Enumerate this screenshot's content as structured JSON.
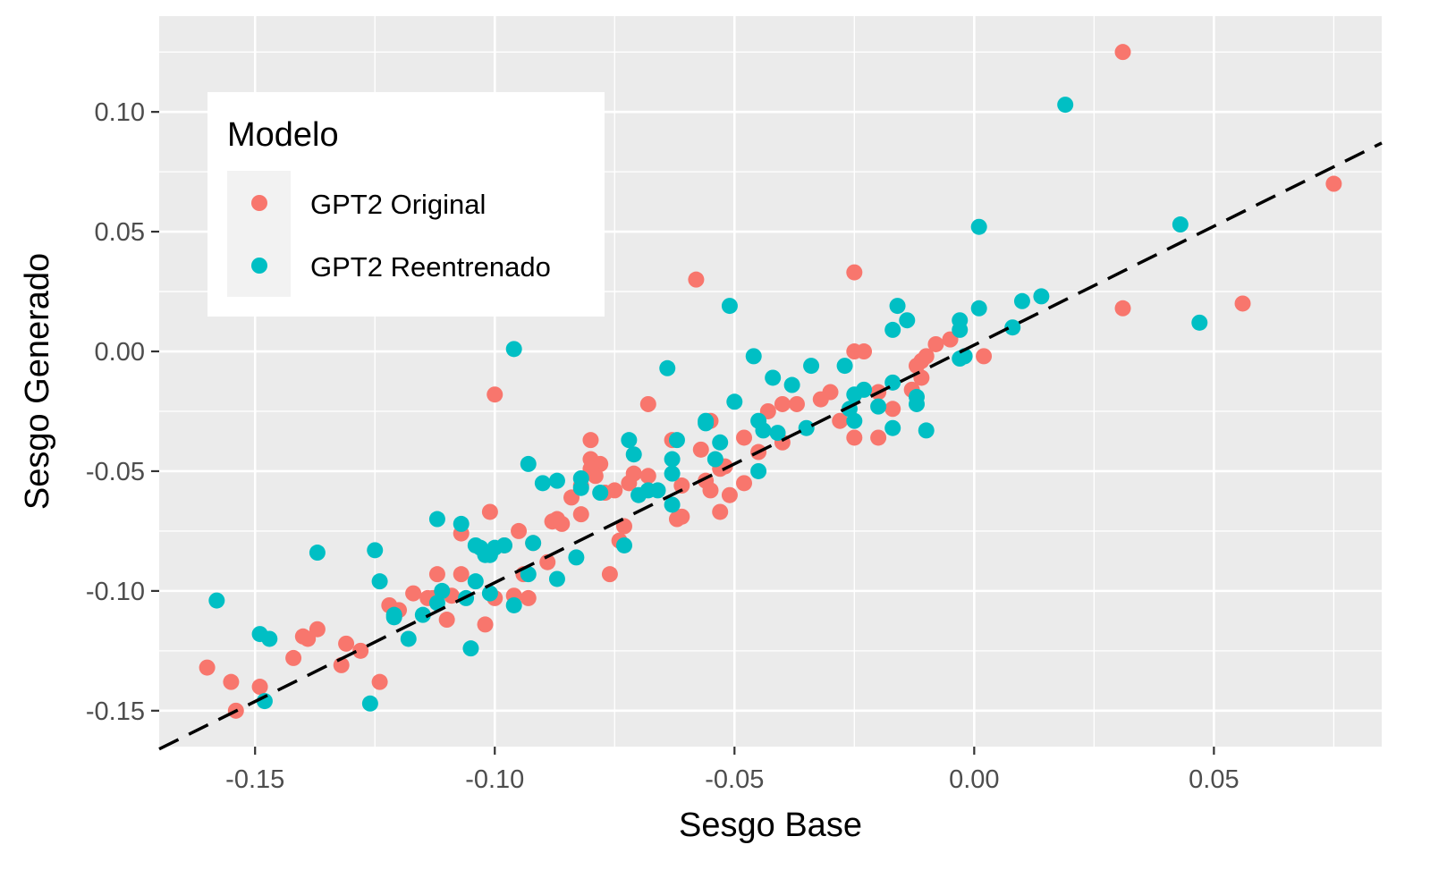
{
  "chart_data": {
    "type": "scatter",
    "xlabel": "Sesgo Base",
    "ylabel": "Sesgo Generado",
    "xlim": [
      -0.17,
      0.085
    ],
    "ylim": [
      -0.165,
      0.14
    ],
    "x_ticks": [
      -0.15,
      -0.1,
      -0.05,
      0.0,
      0.05
    ],
    "x_tick_labels": [
      "-0.15",
      "-0.10",
      "-0.05",
      "0.00",
      "0.05"
    ],
    "y_ticks": [
      -0.15,
      -0.1,
      -0.05,
      0.0,
      0.05,
      0.1
    ],
    "y_tick_labels": [
      "-0.15",
      "-0.10",
      "-0.05",
      "0.00",
      "0.05",
      "0.10"
    ],
    "grid": true,
    "background": "#ebebeb",
    "reference_line": {
      "style": "dashed",
      "color": "#000000",
      "x": [
        -0.17,
        0.085
      ],
      "y": [
        -0.166,
        0.087
      ]
    },
    "legend": {
      "title": "Modelo",
      "position": "top-left",
      "entries": [
        "GPT2 Original",
        "GPT2 Reentrenado"
      ]
    },
    "series": [
      {
        "name": "GPT2 Original",
        "color": "#f8766d",
        "points": [
          [
            0.031,
            0.125
          ],
          [
            0.075,
            0.07
          ],
          [
            0.056,
            0.02
          ],
          [
            0.031,
            0.018
          ],
          [
            -0.025,
            0.033
          ],
          [
            -0.058,
            0.03
          ],
          [
            0.002,
            -0.002
          ],
          [
            -0.025,
            0.0
          ],
          [
            -0.023,
            0.0
          ],
          [
            -0.005,
            0.005
          ],
          [
            -0.008,
            0.003
          ],
          [
            -0.01,
            -0.002
          ],
          [
            -0.011,
            -0.004
          ],
          [
            -0.012,
            -0.006
          ],
          [
            -0.011,
            -0.011
          ],
          [
            -0.013,
            -0.016
          ],
          [
            -0.02,
            -0.017
          ],
          [
            -0.017,
            -0.024
          ],
          [
            -0.03,
            -0.017
          ],
          [
            -0.032,
            -0.02
          ],
          [
            -0.028,
            -0.029
          ],
          [
            -0.025,
            -0.036
          ],
          [
            -0.02,
            -0.036
          ],
          [
            -0.037,
            -0.022
          ],
          [
            -0.04,
            -0.022
          ],
          [
            -0.043,
            -0.025
          ],
          [
            -0.04,
            -0.038
          ],
          [
            -0.048,
            -0.036
          ],
          [
            -0.045,
            -0.042
          ],
          [
            -0.048,
            -0.055
          ],
          [
            -0.051,
            -0.06
          ],
          [
            -0.053,
            -0.067
          ],
          [
            -0.053,
            -0.049
          ],
          [
            -0.055,
            -0.029
          ],
          [
            -0.057,
            -0.041
          ],
          [
            -0.056,
            -0.054
          ],
          [
            -0.055,
            -0.058
          ],
          [
            -0.061,
            -0.056
          ],
          [
            -0.063,
            -0.037
          ],
          [
            -0.068,
            -0.022
          ],
          [
            -0.068,
            -0.052
          ],
          [
            -0.071,
            -0.051
          ],
          [
            -0.072,
            -0.055
          ],
          [
            -0.073,
            -0.073
          ],
          [
            -0.074,
            -0.079
          ],
          [
            -0.076,
            -0.093
          ],
          [
            -0.075,
            -0.058
          ],
          [
            -0.077,
            -0.059
          ],
          [
            -0.078,
            -0.047
          ],
          [
            -0.079,
            -0.052
          ],
          [
            -0.08,
            -0.037
          ],
          [
            -0.08,
            -0.045
          ],
          [
            -0.08,
            -0.049
          ],
          [
            -0.082,
            -0.056
          ],
          [
            -0.082,
            -0.068
          ],
          [
            -0.084,
            -0.061
          ],
          [
            -0.086,
            -0.072
          ],
          [
            -0.088,
            -0.071
          ],
          [
            -0.089,
            -0.088
          ],
          [
            -0.092,
            -0.08
          ],
          [
            -0.094,
            -0.093
          ],
          [
            -0.095,
            -0.075
          ],
          [
            -0.093,
            -0.103
          ],
          [
            -0.096,
            -0.102
          ],
          [
            -0.098,
            -0.081
          ],
          [
            -0.101,
            -0.067
          ],
          [
            -0.1,
            -0.018
          ],
          [
            -0.1,
            -0.103
          ],
          [
            -0.102,
            -0.114
          ],
          [
            -0.107,
            -0.093
          ],
          [
            -0.107,
            -0.076
          ],
          [
            -0.109,
            -0.102
          ],
          [
            -0.11,
            -0.112
          ],
          [
            -0.112,
            -0.093
          ],
          [
            -0.113,
            -0.103
          ],
          [
            -0.114,
            -0.103
          ],
          [
            -0.117,
            -0.101
          ],
          [
            -0.12,
            -0.108
          ],
          [
            -0.122,
            -0.106
          ],
          [
            -0.124,
            -0.138
          ],
          [
            -0.128,
            -0.125
          ],
          [
            -0.131,
            -0.122
          ],
          [
            -0.132,
            -0.131
          ],
          [
            -0.137,
            -0.116
          ],
          [
            -0.139,
            -0.12
          ],
          [
            -0.14,
            -0.119
          ],
          [
            -0.142,
            -0.128
          ],
          [
            -0.149,
            -0.14
          ],
          [
            -0.154,
            -0.15
          ],
          [
            -0.155,
            -0.138
          ],
          [
            -0.16,
            -0.132
          ],
          [
            -0.062,
            -0.07
          ],
          [
            -0.061,
            -0.069
          ],
          [
            -0.052,
            -0.048
          ],
          [
            -0.087,
            -0.07
          ]
        ]
      },
      {
        "name": "GPT2 Reentrenado",
        "color": "#00bfc4",
        "points": [
          [
            0.019,
            0.103
          ],
          [
            0.043,
            0.053
          ],
          [
            0.047,
            0.012
          ],
          [
            0.001,
            0.052
          ],
          [
            0.014,
            0.023
          ],
          [
            0.01,
            0.021
          ],
          [
            0.008,
            0.01
          ],
          [
            0.001,
            0.018
          ],
          [
            -0.003,
            0.013
          ],
          [
            -0.003,
            0.009
          ],
          [
            -0.002,
            -0.002
          ],
          [
            -0.003,
            -0.003
          ],
          [
            -0.016,
            0.019
          ],
          [
            -0.014,
            0.013
          ],
          [
            -0.017,
            0.009
          ],
          [
            -0.012,
            -0.022
          ],
          [
            -0.017,
            -0.013
          ],
          [
            -0.01,
            -0.033
          ],
          [
            -0.017,
            -0.032
          ],
          [
            -0.023,
            -0.016
          ],
          [
            -0.02,
            -0.023
          ],
          [
            -0.025,
            -0.018
          ],
          [
            -0.025,
            -0.029
          ],
          [
            -0.027,
            -0.006
          ],
          [
            -0.034,
            -0.006
          ],
          [
            -0.035,
            -0.032
          ],
          [
            -0.038,
            -0.014
          ],
          [
            -0.041,
            -0.034
          ],
          [
            -0.042,
            -0.011
          ],
          [
            -0.045,
            -0.029
          ],
          [
            -0.044,
            -0.033
          ],
          [
            -0.045,
            -0.05
          ],
          [
            -0.046,
            -0.002
          ],
          [
            -0.05,
            -0.021
          ],
          [
            -0.051,
            0.019
          ],
          [
            -0.053,
            -0.038
          ],
          [
            -0.054,
            -0.045
          ],
          [
            -0.056,
            -0.029
          ],
          [
            -0.062,
            -0.037
          ],
          [
            -0.063,
            -0.045
          ],
          [
            -0.063,
            -0.051
          ],
          [
            -0.063,
            -0.064
          ],
          [
            -0.064,
            -0.007
          ],
          [
            -0.066,
            -0.058
          ],
          [
            -0.068,
            -0.058
          ],
          [
            -0.07,
            -0.06
          ],
          [
            -0.071,
            -0.043
          ],
          [
            -0.072,
            -0.037
          ],
          [
            -0.073,
            -0.081
          ],
          [
            -0.078,
            -0.059
          ],
          [
            -0.082,
            -0.053
          ],
          [
            -0.083,
            -0.086
          ],
          [
            -0.082,
            -0.057
          ],
          [
            -0.087,
            -0.054
          ],
          [
            -0.087,
            -0.095
          ],
          [
            -0.09,
            -0.055
          ],
          [
            -0.092,
            -0.08
          ],
          [
            -0.093,
            -0.047
          ],
          [
            -0.093,
            -0.093
          ],
          [
            -0.096,
            -0.106
          ],
          [
            -0.096,
            0.001
          ],
          [
            -0.098,
            -0.081
          ],
          [
            -0.101,
            -0.085
          ],
          [
            -0.102,
            -0.085
          ],
          [
            -0.103,
            -0.082
          ],
          [
            -0.1,
            -0.082
          ],
          [
            -0.101,
            -0.101
          ],
          [
            -0.104,
            -0.096
          ],
          [
            -0.104,
            -0.081
          ],
          [
            -0.105,
            -0.124
          ],
          [
            -0.106,
            -0.103
          ],
          [
            -0.107,
            -0.072
          ],
          [
            -0.111,
            -0.1
          ],
          [
            -0.112,
            -0.105
          ],
          [
            -0.112,
            -0.07
          ],
          [
            -0.115,
            -0.11
          ],
          [
            -0.118,
            -0.12
          ],
          [
            -0.121,
            -0.111
          ],
          [
            -0.121,
            -0.11
          ],
          [
            -0.124,
            -0.096
          ],
          [
            -0.125,
            -0.083
          ],
          [
            -0.126,
            -0.147
          ],
          [
            -0.137,
            -0.084
          ],
          [
            -0.147,
            -0.12
          ],
          [
            -0.149,
            -0.118
          ],
          [
            -0.148,
            -0.146
          ],
          [
            -0.158,
            -0.104
          ],
          [
            -0.012,
            -0.019
          ],
          [
            -0.026,
            -0.024
          ],
          [
            -0.056,
            -0.03
          ]
        ]
      }
    ]
  }
}
